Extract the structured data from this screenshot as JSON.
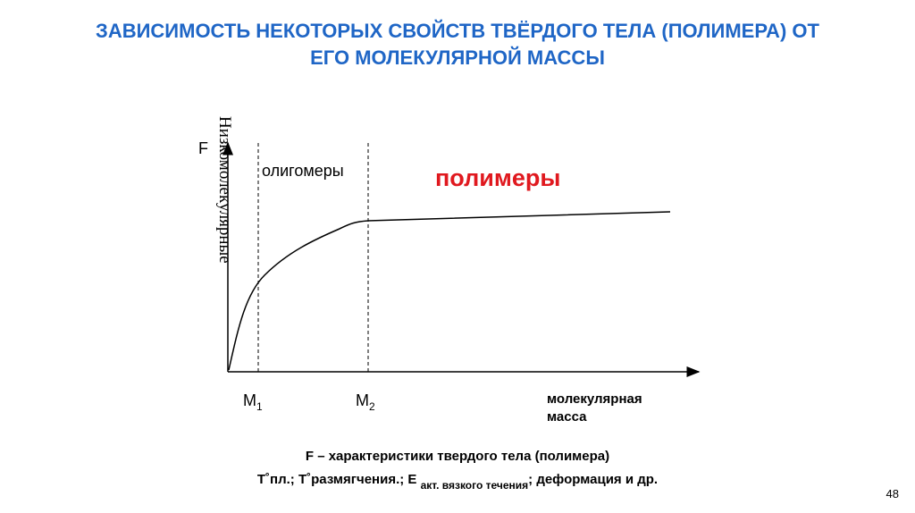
{
  "title": {
    "line1": "ЗАВИСИМОСТЬ НЕКОТОРЫХ СВОЙСТВ ТВЁРДОГО ТЕЛА (ПОЛИМЕРА) ОТ",
    "line2": "ЕГО МОЛЕКУЛЯРНОЙ МАССЫ"
  },
  "diagram": {
    "y_axis_label": "F",
    "x_axis_label_line1": "молекулярная",
    "x_axis_label_line2": "масса",
    "m1": {
      "main": "M",
      "sub": "1"
    },
    "m2": {
      "main": "M",
      "sub": "2"
    },
    "region_low": "Низкомолекулярные",
    "region_oligo": "олигомеры",
    "region_poly": "полимеры",
    "poly_color": "#e0191f"
  },
  "caption": {
    "line1": "F – характеристики твердого тела (полимера)",
    "line2_a": "T˚пл.; T˚размягчения.; E ",
    "line2_sub": "акт. вязкого течения",
    "line2_b": "; деформация и др."
  },
  "page_number": "48"
}
